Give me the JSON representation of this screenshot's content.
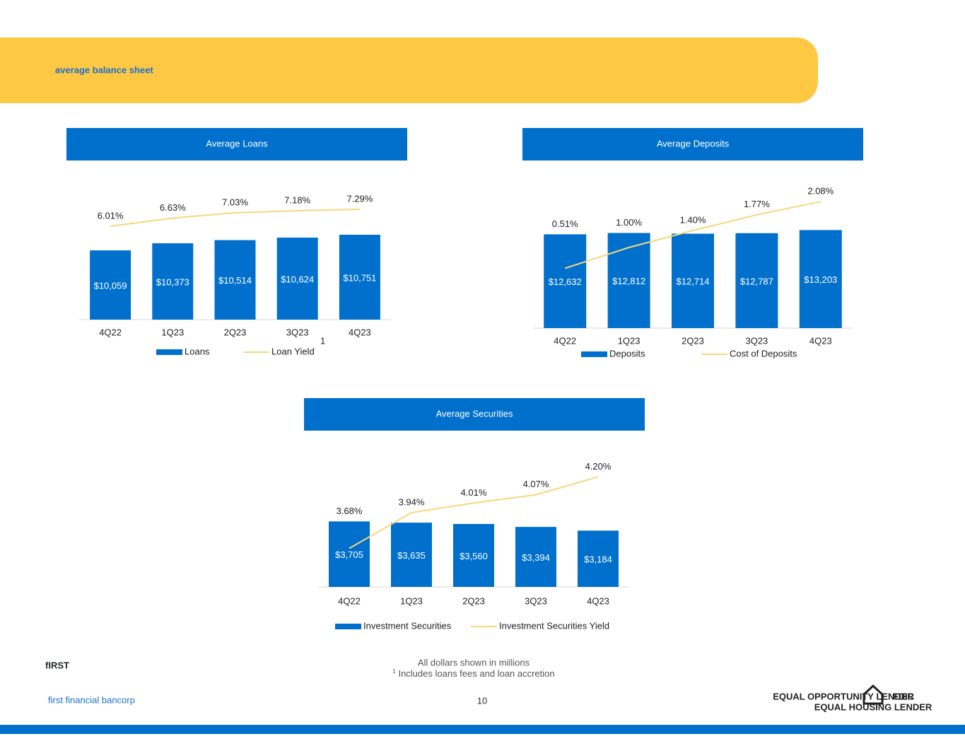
{
  "slide": {
    "title": "average balance sheet",
    "logo": "fIRST",
    "company": "first financial bancorp",
    "footnotes": [
      "All dollars shown in millions",
      {
        "mark": "1",
        "text": "Includes loans fees and loan accretion"
      }
    ],
    "page_number": "10",
    "badges": [
      "EQUAL OPPORTUNITY LENDER",
      "EQUAL HOUSING LENDER",
      "FDIC"
    ]
  },
  "chart_data": [
    {
      "type": "combo",
      "title": "Average Loans",
      "categories": [
        "4Q22",
        "1Q23",
        "2Q23",
        "3Q23",
        "4Q23"
      ],
      "ylim": [
        7000,
        12000
      ],
      "y2lim": [
        -1,
        7.5
      ],
      "note": "1",
      "series": [
        {
          "name": "Loans",
          "type": "bar",
          "color": "#0070cc",
          "values": [
            10059,
            10373,
            10514,
            10624,
            10751
          ],
          "value_labels": [
            "$10,059",
            "$10,373",
            "$10,514",
            "$10,624",
            "$10,751"
          ]
        },
        {
          "name": "Loan Yield",
          "type": "line",
          "axis": "y2",
          "color": "#f7d77c",
          "values": [
            6.01,
            6.63,
            7.03,
            7.18,
            7.29
          ],
          "value_labels": [
            "6.01%",
            "6.63%",
            "7.03%",
            "7.18%",
            "7.29%"
          ]
        }
      ]
    },
    {
      "type": "combo",
      "title": "Average Deposits",
      "categories": [
        "4Q22",
        "1Q23",
        "2Q23",
        "3Q23",
        "4Q23"
      ],
      "ylim": [
        0,
        20000
      ],
      "y2lim": [
        -0.9,
        2.6
      ],
      "series": [
        {
          "name": "Deposits",
          "type": "bar",
          "color": "#0070cc",
          "values": [
            12632,
            12812,
            12714,
            12787,
            13203
          ],
          "value_labels": [
            "$12,632",
            "$12,812",
            "$12,714",
            "$12,787",
            "$13,203"
          ]
        },
        {
          "name": "Cost of Deposits",
          "type": "line",
          "axis": "y2",
          "color": "#f7d77c",
          "values": [
            0.51,
            1.0,
            1.4,
            1.77,
            2.08
          ],
          "value_labels": [
            "0.51%",
            "1.00%",
            "1.40%",
            "1.77%",
            "2.08%"
          ]
        }
      ]
    },
    {
      "type": "combo",
      "title": "Average Securities",
      "categories": [
        "4Q22",
        "1Q23",
        "2Q23",
        "3Q23",
        "4Q23"
      ],
      "ylim": [
        0,
        7000
      ],
      "y2lim": [
        3.4,
        4.3
      ],
      "series": [
        {
          "name": "Investment Securities",
          "type": "bar",
          "color": "#0070cc",
          "values": [
            3705,
            3635,
            3560,
            3394,
            3184
          ],
          "value_labels": [
            "$3,705",
            "$3,635",
            "$3,560",
            "$3,394",
            "$3,184"
          ]
        },
        {
          "name": "Investment Securities Yield",
          "type": "line",
          "axis": "y2",
          "color": "#f7d77c",
          "values": [
            3.68,
            3.94,
            4.01,
            4.07,
            4.2
          ],
          "value_labels": [
            "3.68%",
            "3.94%",
            "4.01%",
            "4.07%",
            "4.20%"
          ]
        }
      ]
    }
  ]
}
